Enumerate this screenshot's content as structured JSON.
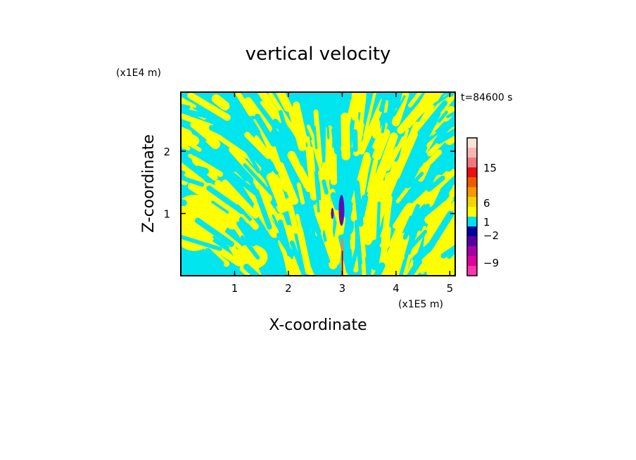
{
  "chart_data": {
    "type": "heatmap",
    "title": "vertical velocity",
    "time_label": "t=84600 s",
    "xlabel": "X-coordinate",
    "ylabel": "Z-coordinate",
    "x_unit": "(x1E5 m)",
    "y_unit": "(x1E4 m)",
    "xlim": [
      0,
      5.1
    ],
    "ylim": [
      0,
      2.95
    ],
    "x_ticks": [
      "1",
      "2",
      "3",
      "4",
      "5"
    ],
    "y_ticks": [
      "1",
      "2"
    ],
    "x_tick_values": [
      1,
      2,
      3,
      4,
      5
    ],
    "y_tick_values": [
      1,
      2
    ],
    "colorbar": {
      "labels": [
        "15",
        "6",
        "1",
        "−2",
        "−9"
      ],
      "label_values": [
        15,
        6,
        1,
        -2,
        -9
      ],
      "colors": [
        "#fde3d6",
        "#f7b7b0",
        "#f0787c",
        "#e81010",
        "#f05a00",
        "#f89800",
        "#f4d400",
        "#ffff00",
        "#00e0f0",
        "#0000a0",
        "#5a00a0",
        "#a800a8",
        "#e000a0",
        "#ff33aa"
      ]
    },
    "field_colors": {
      "positive": "#ffff00",
      "negative": "#00e5ee",
      "updraft_core": "#f08040",
      "downdraft_core": "#5a10b0"
    }
  }
}
